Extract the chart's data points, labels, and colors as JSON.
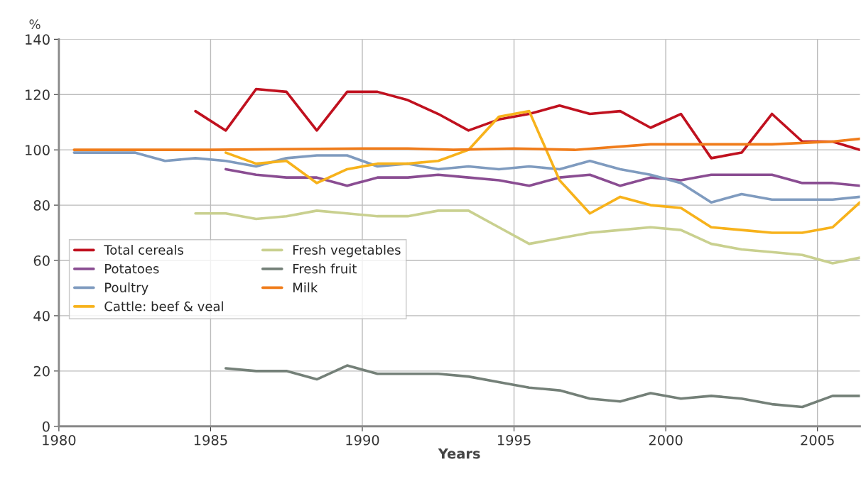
{
  "chart_data": {
    "type": "line",
    "xlabel": "Years",
    "ylabel": "%",
    "xlim": [
      1980,
      2006.4
    ],
    "xticks": [
      1980,
      1985,
      1990,
      1995,
      2000,
      2005
    ],
    "ylim": [
      0,
      140
    ],
    "yticks": [
      0,
      20,
      40,
      60,
      80,
      100,
      120,
      140
    ],
    "grid": true,
    "legend": "left",
    "marker": "none",
    "line_style": "solid",
    "series": [
      {
        "name": "Total cereals",
        "color": "#c0111f",
        "x": [
          1984.5,
          1985.5,
          1986.5,
          1987.5,
          1988.5,
          1989.5,
          1990.5,
          1991.5,
          1992.5,
          1993.5,
          1994.5,
          1995.5,
          1996.5,
          1997.5,
          1998.5,
          1999.5,
          2000.5,
          2001.5,
          2002.5,
          2003.5,
          2004.5,
          2005.5,
          2006.4
        ],
        "values": [
          114,
          107,
          122,
          121,
          107,
          121,
          121,
          118,
          113,
          107,
          111,
          113,
          116,
          113,
          114,
          108,
          113,
          97,
          99,
          113,
          103,
          103,
          100
        ]
      },
      {
        "name": "Potatoes",
        "color": "#8a4d92",
        "x": [
          1985.5,
          1986.5,
          1987.5,
          1988.5,
          1989.5,
          1990.5,
          1991.5,
          1992.5,
          1993.5,
          1994.5,
          1995.5,
          1996.5,
          1997.5,
          1998.5,
          1999.5,
          2000.5,
          2001.5,
          2002.5,
          2003.5,
          2004.5,
          2005.5,
          2006.4
        ],
        "values": [
          93,
          91,
          90,
          90,
          87,
          90,
          90,
          91,
          90,
          89,
          87,
          90,
          91,
          87,
          90,
          89,
          91,
          91,
          91,
          88,
          88,
          87
        ]
      },
      {
        "name": "Poultry",
        "color": "#7f9bbf",
        "x": [
          1980.5,
          1982.5,
          1983.5,
          1984.5,
          1985.5,
          1986.5,
          1987.5,
          1988.5,
          1989.5,
          1990.5,
          1991.5,
          1992.5,
          1993.5,
          1994.5,
          1995.5,
          1996.5,
          1997.5,
          1998.5,
          1999.5,
          2000.5,
          2001.5,
          2002.5,
          2003.5,
          2004.5,
          2005.5,
          2006.4
        ],
        "values": [
          99,
          99,
          96,
          97,
          96,
          94,
          97,
          98,
          98,
          94,
          95,
          93,
          94,
          93,
          94,
          93,
          96,
          93,
          91,
          88,
          81,
          84,
          82,
          82,
          82,
          83
        ]
      },
      {
        "name": "Cattle: beef & veal",
        "color": "#f7b21b",
        "x": [
          1985.5,
          1986.5,
          1987.5,
          1988.5,
          1989.5,
          1990.5,
          1991.5,
          1992.5,
          1993.5,
          1994.5,
          1995.5,
          1996.5,
          1997.5,
          1998.5,
          1999.5,
          2000.5,
          2001.5,
          2002.5,
          2003.5,
          2004.5,
          2005.5,
          2006.4
        ],
        "values": [
          99,
          95,
          96,
          88,
          93,
          95,
          95,
          96,
          100,
          112,
          114,
          89,
          77,
          83,
          80,
          79,
          72,
          71,
          70,
          70,
          72,
          81
        ]
      },
      {
        "name": "Fresh vegetables",
        "color": "#c9d08f",
        "x": [
          1984.5,
          1985.5,
          1986.5,
          1987.5,
          1988.5,
          1989.5,
          1990.5,
          1991.5,
          1992.5,
          1993.5,
          1994.5,
          1995.5,
          1996.5,
          1997.5,
          1998.5,
          1999.5,
          2000.5,
          2001.5,
          2002.5,
          2003.5,
          2004.5,
          2005.5,
          2006.4
        ],
        "values": [
          77,
          77,
          75,
          76,
          78,
          77,
          76,
          76,
          78,
          78,
          72,
          66,
          68,
          70,
          71,
          72,
          71,
          66,
          64,
          63,
          62,
          59,
          61
        ]
      },
      {
        "name": "Fresh fruit",
        "color": "#748078",
        "x": [
          1985.5,
          1986.5,
          1987.5,
          1988.5,
          1989.5,
          1990.5,
          1991.5,
          1992.5,
          1993.5,
          1994.5,
          1995.5,
          1996.5,
          1997.5,
          1998.5,
          1999.5,
          2000.5,
          2001.5,
          2002.5,
          2003.5,
          2004.5,
          2005.5,
          2006.4
        ],
        "values": [
          21,
          20,
          20,
          17,
          22,
          19,
          19,
          19,
          18,
          16,
          14,
          13,
          10,
          9,
          12,
          10,
          11,
          10,
          8,
          7,
          11,
          11
        ]
      },
      {
        "name": "Milk",
        "color": "#f07c1a",
        "x": [
          1980.5,
          1985,
          1990,
          1991.5,
          1993,
          1995,
          1997,
          1999.5,
          2000.5,
          2003.5,
          2005.5,
          2006.4
        ],
        "values": [
          100,
          100,
          100.5,
          100.5,
          100,
          100.5,
          100,
          102,
          102,
          102,
          103,
          104
        ]
      }
    ]
  }
}
